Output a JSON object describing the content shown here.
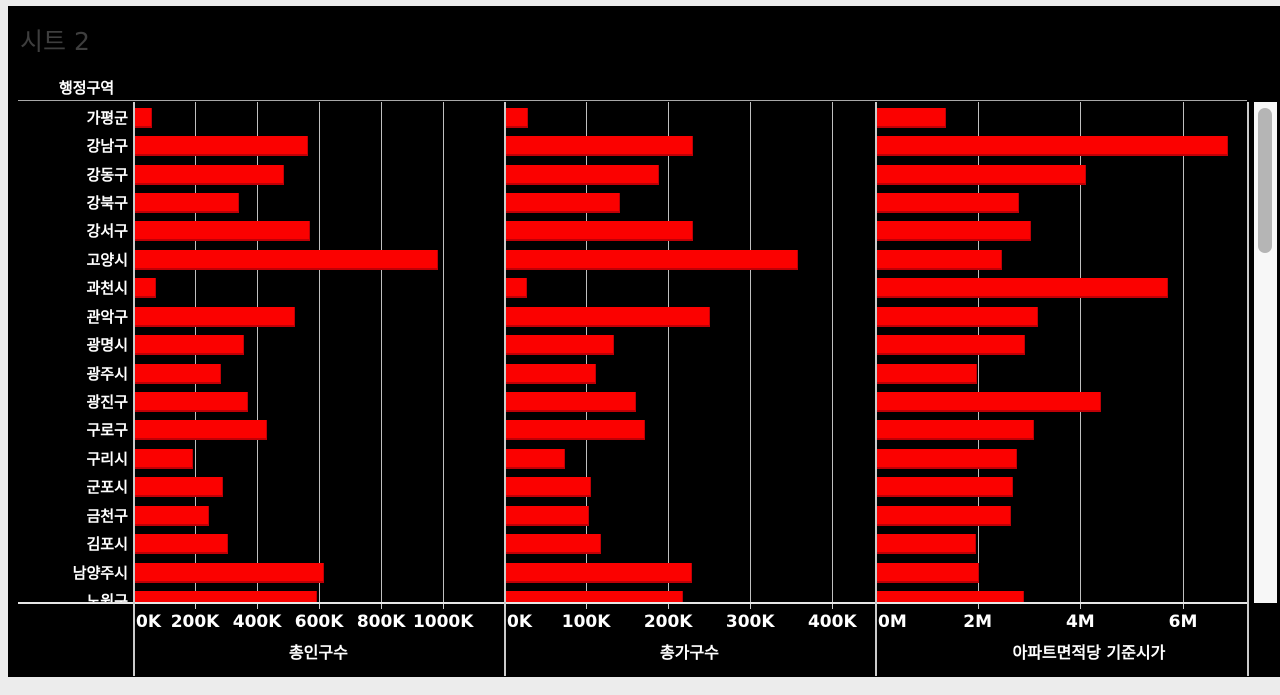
{
  "title": "시트 2",
  "row_header": "행정구역",
  "colors": {
    "bar": "#fb0100",
    "background": "#000000",
    "frame": "#ececec",
    "grid": "#c9c9c9",
    "title_text": "#3e3e3e",
    "axis_text": "#ffffff"
  },
  "chart_data": {
    "type": "bar",
    "orientation": "horizontal",
    "title": "시트 2",
    "row_header": "행정구역",
    "grid": true,
    "categories": [
      "가평군",
      "강남구",
      "강동구",
      "강북구",
      "강서구",
      "고양시",
      "과천시",
      "관악구",
      "광명시",
      "광주시",
      "광진구",
      "구로구",
      "구리시",
      "군포시",
      "금천구",
      "김포시",
      "남양주시",
      "노원구"
    ],
    "series": [
      {
        "name": "총인구수",
        "values": [
          60000,
          563000,
          486000,
          341000,
          570000,
          981000,
          72000,
          522000,
          355000,
          283000,
          368000,
          429000,
          192000,
          287000,
          243000,
          306000,
          614000,
          593000
        ],
        "visible_max": 1196000,
        "ticks": [
          {
            "label": "0K",
            "value": 0
          },
          {
            "label": "200K",
            "value": 200000
          },
          {
            "label": "400K",
            "value": 400000
          },
          {
            "label": "600K",
            "value": 600000
          },
          {
            "label": "800K",
            "value": 800000
          },
          {
            "label": "1000K",
            "value": 1000000
          }
        ]
      },
      {
        "name": "총가구수",
        "values": [
          29000,
          230000,
          188000,
          141000,
          230000,
          358000,
          27000,
          250000,
          133000,
          112000,
          160000,
          171000,
          74000,
          105000,
          103000,
          118000,
          229000,
          218000
        ],
        "visible_max": 452000,
        "ticks": [
          {
            "label": "0K",
            "value": 0
          },
          {
            "label": "100K",
            "value": 100000
          },
          {
            "label": "200K",
            "value": 200000
          },
          {
            "label": "300K",
            "value": 300000
          },
          {
            "label": "400K",
            "value": 400000
          }
        ]
      },
      {
        "name": "아파트면적당 기준시가",
        "values": [
          1370000,
          6870000,
          4100000,
          2790000,
          3030000,
          2460000,
          5700000,
          3170000,
          2920000,
          1980000,
          4400000,
          3080000,
          2760000,
          2670000,
          2640000,
          1960000,
          2010000,
          2900000
        ],
        "visible_max": 7247000,
        "ticks": [
          {
            "label": "0M",
            "value": 0
          },
          {
            "label": "2M",
            "value": 2000000
          },
          {
            "label": "4M",
            "value": 4000000
          },
          {
            "label": "6M",
            "value": 6000000
          }
        ]
      }
    ]
  }
}
